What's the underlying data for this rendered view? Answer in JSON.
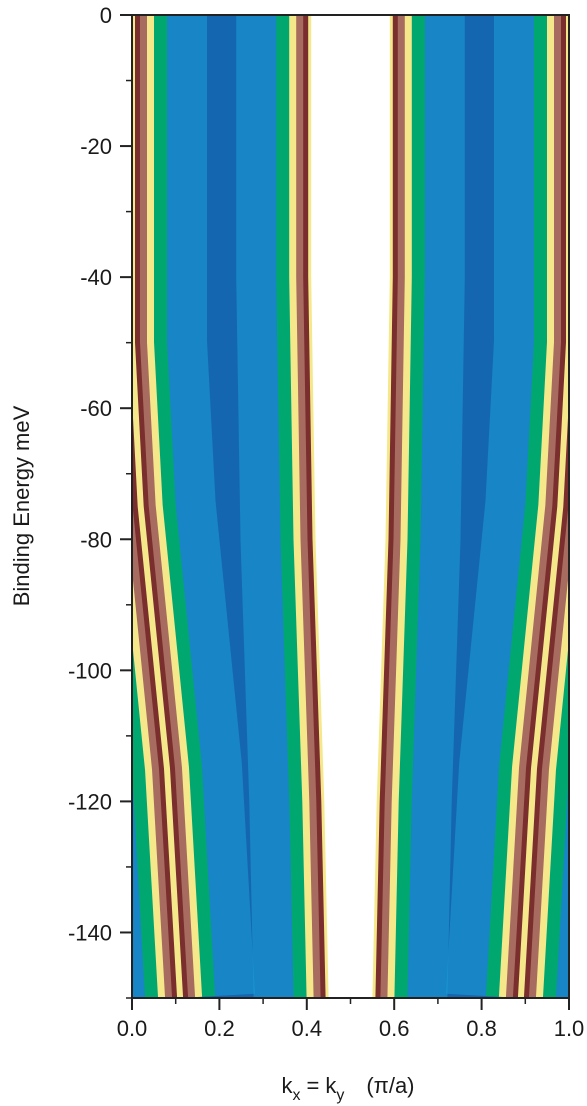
{
  "chart_data": {
    "type": "heatmap",
    "title": "",
    "xlabel": "k_x = k_y (π/a)",
    "xlabel_parts": {
      "k": "k",
      "x_sub": "x",
      "eq": "=",
      "k2": "k",
      "y_sub": "y",
      "units": "(π/a)"
    },
    "ylabel": "Binding Energy meV",
    "xlim": [
      0.0,
      1.0
    ],
    "ylim": [
      -150,
      0
    ],
    "x_ticks": [
      "0.0",
      "0.2",
      "0.4",
      "0.6",
      "0.8",
      "1.0"
    ],
    "y_ticks": [
      "0",
      "-20",
      "-40",
      "-60",
      "-80",
      "-100",
      "-120",
      "-140"
    ],
    "grid": false,
    "colormap": [
      "#ffffff",
      "#7a2e2e",
      "#a86b5f",
      "#f5e88a",
      "#00a870",
      "#1c9fd8",
      "#1566b0"
    ],
    "bands": [
      {
        "name_hint": "outer",
        "points": [
          [
            0.0,
            0
          ],
          [
            0.0,
            -50
          ],
          [
            0.02,
            -75
          ],
          [
            0.08,
            -115
          ],
          [
            0.11,
            -150
          ]
        ]
      },
      {
        "name_hint": "inner",
        "points": [
          [
            0.41,
            0
          ],
          [
            0.41,
            -40
          ],
          [
            0.42,
            -80
          ],
          [
            0.44,
            -120
          ],
          [
            0.45,
            -150
          ]
        ]
      }
    ]
  }
}
